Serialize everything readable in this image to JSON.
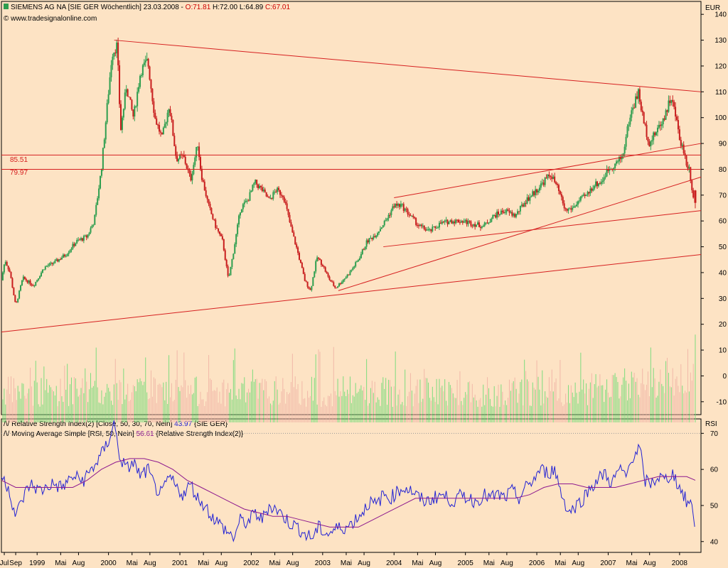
{
  "header": {
    "title_line": "SIEMENS AG NA [SIE GER  Wöchentlich] 23.03.2008 - ",
    "ohlc": {
      "o": "O:71.81",
      "h": "H:72.00",
      "l": "L:64.89",
      "c": "C:67.01"
    },
    "copyright": "© www.tradesignalonline.com"
  },
  "price_panel": {
    "currency": "EUR",
    "level_labels": [
      "85.51",
      "79.97"
    ]
  },
  "rsi_panel": {
    "axis_label": "RSI",
    "legend": [
      {
        "prefix": "Relative Strength Index(2) [Close, 50, 30, 70, Nein] ",
        "value": "43.97",
        "suffix": " {SIE GER}"
      },
      {
        "prefix": "Moving Average Simple [RSI, 50, Nein] ",
        "value": "56.61",
        "suffix": " {Relative Strength Index(2)}"
      }
    ]
  },
  "colors": {
    "background": "#fde3c4",
    "up_candle": "#2e9e4f",
    "down_candle": "#c81e1e",
    "trendline": "#d62020",
    "volume": "#7ddc7d",
    "rsi": "#2323d4",
    "rsi_ma": "#8e1a8e",
    "ohlc_text": "#cc0000"
  },
  "chart_data": [
    {
      "type": "candlestick",
      "title": "SIEMENS AG NA [SIE GER  Wöchentlich]",
      "ylabel": "EUR",
      "ylim": [
        -15,
        145
      ],
      "y_ticks": [
        140,
        130,
        120,
        110,
        100,
        90,
        80,
        70,
        60,
        50,
        40,
        30,
        20,
        10,
        0,
        -10
      ],
      "x_ticks": [
        "Jul",
        "Sep",
        "1999",
        "Mai",
        "Aug",
        "2000",
        "Mai",
        "Aug",
        "2001",
        "Mai",
        "Aug",
        "2002",
        "Mai",
        "Aug",
        "2003",
        "Mai",
        "Aug",
        "2004",
        "Mai",
        "Aug",
        "2005",
        "Mai",
        "Aug",
        "2006",
        "Mai",
        "Aug",
        "2007",
        "Mai",
        "Aug",
        "2008"
      ],
      "x_tick_dates": [
        1998.54,
        1998.7,
        1999.0,
        1999.33,
        1999.58,
        2000.0,
        2000.33,
        2000.58,
        2001.0,
        2001.33,
        2001.58,
        2002.0,
        2002.33,
        2002.58,
        2003.0,
        2003.33,
        2003.58,
        2004.0,
        2004.33,
        2004.58,
        2005.0,
        2005.33,
        2005.58,
        2006.0,
        2006.33,
        2006.58,
        2007.0,
        2007.33,
        2007.58,
        2008.0
      ],
      "price_path": [
        [
          1998.5,
          37
        ],
        [
          1998.55,
          45
        ],
        [
          1998.62,
          40
        ],
        [
          1998.7,
          27
        ],
        [
          1998.8,
          38
        ],
        [
          1998.95,
          35
        ],
        [
          1999.1,
          42
        ],
        [
          1999.25,
          44
        ],
        [
          1999.4,
          47
        ],
        [
          1999.55,
          52
        ],
        [
          1999.7,
          54
        ],
        [
          1999.8,
          60
        ],
        [
          1999.9,
          80
        ],
        [
          1999.95,
          95
        ],
        [
          2000.05,
          125
        ],
        [
          2000.12,
          128
        ],
        [
          2000.17,
          95
        ],
        [
          2000.25,
          112
        ],
        [
          2000.35,
          100
        ],
        [
          2000.45,
          118
        ],
        [
          2000.55,
          122
        ],
        [
          2000.65,
          100
        ],
        [
          2000.75,
          92
        ],
        [
          2000.85,
          105
        ],
        [
          2000.95,
          84
        ],
        [
          2001.05,
          85
        ],
        [
          2001.15,
          76
        ],
        [
          2001.25,
          90
        ],
        [
          2001.3,
          78
        ],
        [
          2001.4,
          66
        ],
        [
          2001.5,
          58
        ],
        [
          2001.6,
          52
        ],
        [
          2001.68,
          37
        ],
        [
          2001.75,
          48
        ],
        [
          2001.85,
          65
        ],
        [
          2001.95,
          68
        ],
        [
          2002.05,
          75
        ],
        [
          2002.15,
          72
        ],
        [
          2002.25,
          68
        ],
        [
          2002.35,
          72
        ],
        [
          2002.45,
          70
        ],
        [
          2002.55,
          58
        ],
        [
          2002.65,
          48
        ],
        [
          2002.75,
          37
        ],
        [
          2002.83,
          33
        ],
        [
          2002.92,
          46
        ],
        [
          2003.0,
          43
        ],
        [
          2003.08,
          38
        ],
        [
          2003.18,
          34
        ],
        [
          2003.28,
          37
        ],
        [
          2003.38,
          40
        ],
        [
          2003.5,
          45
        ],
        [
          2003.62,
          52
        ],
        [
          2003.75,
          55
        ],
        [
          2003.88,
          60
        ],
        [
          2004.0,
          66
        ],
        [
          2004.1,
          66
        ],
        [
          2004.2,
          63
        ],
        [
          2004.35,
          58
        ],
        [
          2004.5,
          56
        ],
        [
          2004.65,
          59
        ],
        [
          2004.8,
          60
        ],
        [
          2004.95,
          60
        ],
        [
          2005.1,
          59
        ],
        [
          2005.25,
          58
        ],
        [
          2005.4,
          62
        ],
        [
          2005.55,
          64
        ],
        [
          2005.7,
          62
        ],
        [
          2005.85,
          68
        ],
        [
          2006.0,
          72
        ],
        [
          2006.12,
          76
        ],
        [
          2006.2,
          78
        ],
        [
          2006.3,
          72
        ],
        [
          2006.4,
          64
        ],
        [
          2006.5,
          65
        ],
        [
          2006.6,
          68
        ],
        [
          2006.7,
          70
        ],
        [
          2006.8,
          74
        ],
        [
          2006.9,
          75
        ],
        [
          2007.0,
          80
        ],
        [
          2007.1,
          82
        ],
        [
          2007.2,
          85
        ],
        [
          2007.3,
          100
        ],
        [
          2007.42,
          110
        ],
        [
          2007.5,
          98
        ],
        [
          2007.58,
          90
        ],
        [
          2007.68,
          95
        ],
        [
          2007.78,
          100
        ],
        [
          2007.88,
          108
        ],
        [
          2007.95,
          100
        ],
        [
          2008.0,
          92
        ],
        [
          2008.05,
          88
        ],
        [
          2008.1,
          82
        ],
        [
          2008.14,
          80
        ],
        [
          2008.18,
          71
        ],
        [
          2008.22,
          67
        ]
      ],
      "last_candle": {
        "open": 71.81,
        "high": 72.0,
        "low": 64.89,
        "close": 67.01
      },
      "horizontal_lines": [
        85.51,
        79.97
      ],
      "trendlines": [
        {
          "from": [
            2000.08,
            130
          ],
          "to": [
            2008.3,
            110
          ]
        },
        {
          "from": [
            1998.5,
            17
          ],
          "to": [
            2008.3,
            47
          ]
        },
        {
          "from": [
            2003.22,
            33
          ],
          "to": [
            2008.3,
            77
          ]
        },
        {
          "from": [
            2003.85,
            50
          ],
          "to": [
            2008.3,
            64
          ]
        },
        {
          "from": [
            2004.0,
            69
          ],
          "to": [
            2008.3,
            90
          ]
        }
      ],
      "volume_baseline": -18
    },
    {
      "type": "line",
      "title": "Relative Strength Index(2)",
      "ylabel": "RSI",
      "ylim": [
        37,
        74
      ],
      "y_ticks": [
        70,
        60,
        50,
        40
      ],
      "reference_line": 70,
      "series": [
        {
          "name": "Relative Strength Index(2) [Close, 50, 30, 70, Nein] 43.97 {SIE GER}",
          "points": [
            [
              1998.5,
              58
            ],
            [
              1998.6,
              55
            ],
            [
              1998.7,
              47
            ],
            [
              1998.8,
              52
            ],
            [
              1998.9,
              56
            ],
            [
              1999.05,
              54
            ],
            [
              1999.2,
              56
            ],
            [
              1999.35,
              55
            ],
            [
              1999.5,
              58
            ],
            [
              1999.65,
              57
            ],
            [
              1999.8,
              61
            ],
            [
              1999.9,
              64
            ],
            [
              2000.0,
              68
            ],
            [
              2000.08,
              73
            ],
            [
              2000.15,
              64
            ],
            [
              2000.25,
              60
            ],
            [
              2000.35,
              62
            ],
            [
              2000.45,
              58
            ],
            [
              2000.55,
              60
            ],
            [
              2000.65,
              55
            ],
            [
              2000.75,
              53
            ],
            [
              2000.85,
              58
            ],
            [
              2000.95,
              55
            ],
            [
              2001.05,
              53
            ],
            [
              2001.15,
              56
            ],
            [
              2001.25,
              52
            ],
            [
              2001.35,
              50
            ],
            [
              2001.45,
              47
            ],
            [
              2001.55,
              45
            ],
            [
              2001.65,
              43
            ],
            [
              2001.75,
              41
            ],
            [
              2001.85,
              46
            ],
            [
              2001.95,
              45
            ],
            [
              2002.05,
              48
            ],
            [
              2002.15,
              46
            ],
            [
              2002.25,
              50
            ],
            [
              2002.35,
              49
            ],
            [
              2002.45,
              47
            ],
            [
              2002.55,
              45
            ],
            [
              2002.65,
              44
            ],
            [
              2002.75,
              42
            ],
            [
              2002.85,
              41
            ],
            [
              2002.95,
              44
            ],
            [
              2003.05,
              42
            ],
            [
              2003.15,
              43
            ],
            [
              2003.25,
              44
            ],
            [
              2003.35,
              44
            ],
            [
              2003.45,
              46
            ],
            [
              2003.55,
              48
            ],
            [
              2003.65,
              51
            ],
            [
              2003.75,
              50
            ],
            [
              2003.85,
              53
            ],
            [
              2003.95,
              52
            ],
            [
              2004.05,
              54
            ],
            [
              2004.15,
              55
            ],
            [
              2004.25,
              54
            ],
            [
              2004.35,
              52
            ],
            [
              2004.45,
              51
            ],
            [
              2004.55,
              52
            ],
            [
              2004.65,
              53
            ],
            [
              2004.75,
              52
            ],
            [
              2004.85,
              51
            ],
            [
              2004.95,
              53
            ],
            [
              2005.05,
              52
            ],
            [
              2005.15,
              51
            ],
            [
              2005.25,
              53
            ],
            [
              2005.35,
              52
            ],
            [
              2005.45,
              53
            ],
            [
              2005.55,
              52
            ],
            [
              2005.65,
              54
            ],
            [
              2005.75,
              52
            ],
            [
              2005.85,
              55
            ],
            [
              2005.95,
              57
            ],
            [
              2006.05,
              60
            ],
            [
              2006.15,
              59
            ],
            [
              2006.25,
              60
            ],
            [
              2006.35,
              53
            ],
            [
              2006.45,
              48
            ],
            [
              2006.55,
              50
            ],
            [
              2006.65,
              52
            ],
            [
              2006.75,
              55
            ],
            [
              2006.85,
              57
            ],
            [
              2006.95,
              59
            ],
            [
              2007.05,
              56
            ],
            [
              2007.15,
              60
            ],
            [
              2007.25,
              58
            ],
            [
              2007.35,
              64
            ],
            [
              2007.45,
              66
            ],
            [
              2007.5,
              57
            ],
            [
              2007.6,
              56
            ],
            [
              2007.7,
              58
            ],
            [
              2007.8,
              57
            ],
            [
              2007.9,
              59
            ],
            [
              2008.0,
              55
            ],
            [
              2008.1,
              51
            ],
            [
              2008.18,
              50
            ],
            [
              2008.22,
              44
            ]
          ]
        },
        {
          "name": "Moving Average Simple [RSI, 50, Nein] 56.61 {Relative Strength Index(2)}",
          "points": [
            [
              1998.5,
              57
            ],
            [
              1998.7,
              55
            ],
            [
              1998.9,
              55
            ],
            [
              1999.1,
              55
            ],
            [
              1999.3,
              55
            ],
            [
              1999.5,
              55
            ],
            [
              1999.7,
              57
            ],
            [
              1999.9,
              60
            ],
            [
              2000.1,
              62
            ],
            [
              2000.3,
              63
            ],
            [
              2000.5,
              63
            ],
            [
              2000.7,
              62
            ],
            [
              2000.9,
              60
            ],
            [
              2001.1,
              57
            ],
            [
              2001.3,
              55
            ],
            [
              2001.5,
              53
            ],
            [
              2001.7,
              51
            ],
            [
              2001.9,
              49
            ],
            [
              2002.1,
              48
            ],
            [
              2002.3,
              47
            ],
            [
              2002.5,
              47
            ],
            [
              2002.7,
              46
            ],
            [
              2002.9,
              45
            ],
            [
              2003.1,
              44
            ],
            [
              2003.3,
              44
            ],
            [
              2003.5,
              44
            ],
            [
              2003.7,
              46
            ],
            [
              2003.9,
              48
            ],
            [
              2004.1,
              50
            ],
            [
              2004.3,
              52
            ],
            [
              2004.5,
              52
            ],
            [
              2004.7,
              52
            ],
            [
              2004.9,
              52
            ],
            [
              2005.1,
              52
            ],
            [
              2005.3,
              52
            ],
            [
              2005.5,
              52
            ],
            [
              2005.7,
              52
            ],
            [
              2005.9,
              53
            ],
            [
              2006.1,
              55
            ],
            [
              2006.3,
              56
            ],
            [
              2006.5,
              56
            ],
            [
              2006.7,
              55
            ],
            [
              2006.9,
              55
            ],
            [
              2007.1,
              55
            ],
            [
              2007.3,
              56
            ],
            [
              2007.5,
              57
            ],
            [
              2007.7,
              58
            ],
            [
              2007.9,
              58
            ],
            [
              2008.1,
              58
            ],
            [
              2008.22,
              57
            ]
          ]
        }
      ]
    }
  ]
}
